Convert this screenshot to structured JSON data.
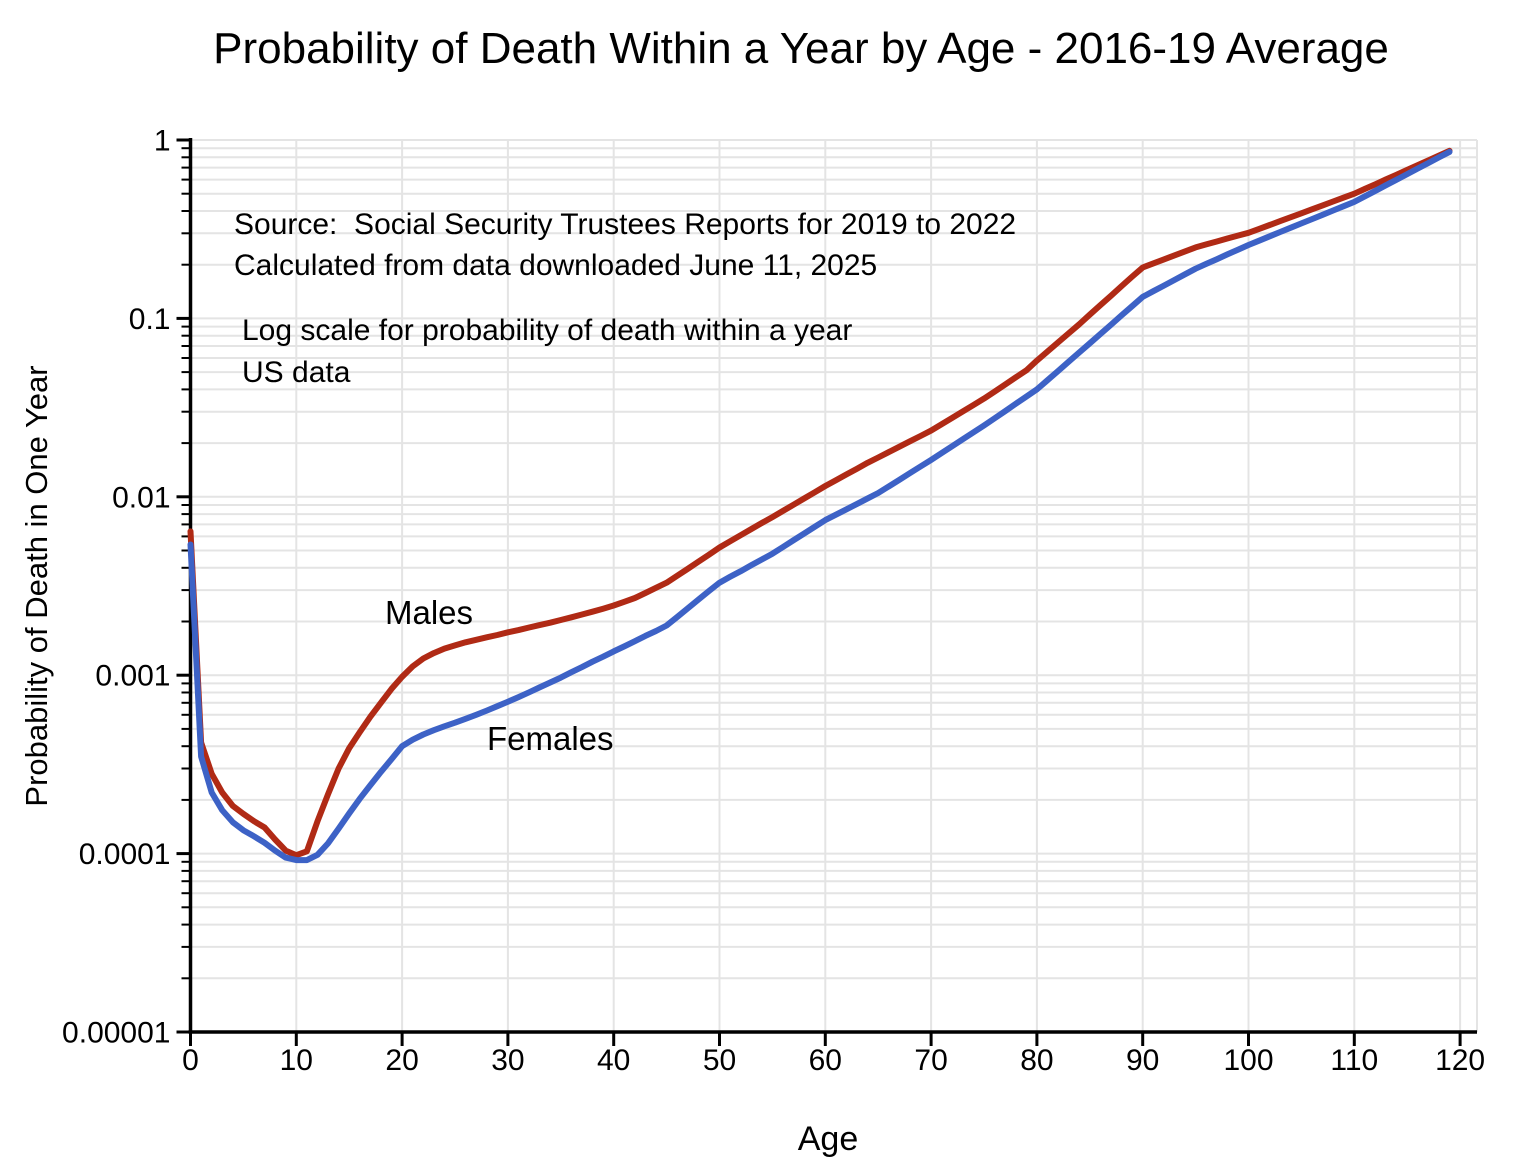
{
  "title": "Probability of Death Within a Year by Age - 2016-19 Average",
  "annotations": {
    "source_line1": "Source:  Social Security Trustees Reports for 2019 to 2022",
    "source_line2": "Calculated from data downloaded June 11, 2025",
    "note_line1": "Log scale for probability of death within a year",
    "note_line2": "US data"
  },
  "series_labels": {
    "males": "Males",
    "females": "Females"
  },
  "axes": {
    "x_label": "Age",
    "y_label": "Probability of Death in One Year",
    "x_ticks": [
      0,
      10,
      20,
      30,
      40,
      50,
      60,
      70,
      80,
      90,
      100,
      110,
      120
    ],
    "y_ticks": [
      {
        "value": 1,
        "label": "1"
      },
      {
        "value": 0.1,
        "label": "0.1"
      },
      {
        "value": 0.01,
        "label": "0.01"
      },
      {
        "value": 0.001,
        "label": "0.001"
      },
      {
        "value": 0.0001,
        "label": "0.0001"
      },
      {
        "value": 1e-05,
        "label": "0.00001"
      }
    ]
  },
  "colors": {
    "males_line": "#b02a15",
    "females_line": "#3d62c6",
    "gridline": "#e4e4e4",
    "axis": "#000000",
    "text": "#000000",
    "background": "#ffffff"
  },
  "chart_data": {
    "type": "line",
    "title": "Probability of Death Within a Year by Age - 2016-19 Average",
    "xlabel": "Age",
    "ylabel": "Probability of Death in One Year",
    "x_range": [
      0,
      120
    ],
    "y_scale": "log",
    "y_range": [
      1e-05,
      1
    ],
    "grid": true,
    "legend": "inline-labels",
    "x_start": 0,
    "x_step": 1,
    "series": [
      {
        "name": "Males",
        "values": [
          0.0064,
          0.00042,
          0.00028,
          0.00022,
          0.000185,
          0.000167,
          0.000152,
          0.00014,
          0.00012,
          0.000104,
          9.8e-05,
          0.000103,
          0.000152,
          0.000215,
          0.0003,
          0.00039,
          0.00048,
          0.000585,
          0.0007,
          0.000838,
          0.00098,
          0.00112,
          0.00124,
          0.00133,
          0.00141,
          0.00147,
          0.00153,
          0.00158,
          0.00163,
          0.00168,
          0.00174,
          0.00179,
          0.00185,
          0.00191,
          0.00197,
          0.00204,
          0.00211,
          0.00219,
          0.00227,
          0.00236,
          0.00246,
          0.00258,
          0.00271,
          0.00289,
          0.00309,
          0.0033,
          0.00361,
          0.00395,
          0.00432,
          0.00473,
          0.0052,
          0.00563,
          0.00609,
          0.00659,
          0.00713,
          0.0077,
          0.00834,
          0.00903,
          0.00978,
          0.0106,
          0.0115,
          0.01239,
          0.01335,
          0.01438,
          0.0155,
          0.0166,
          0.0178,
          0.01908,
          0.02046,
          0.02193,
          0.0235,
          0.02552,
          0.02771,
          0.03009,
          0.03268,
          0.0355,
          0.03889,
          0.0426,
          0.04667,
          0.05113,
          0.058,
          0.06521,
          0.07332,
          0.08243,
          0.09268,
          0.105,
          0.11866,
          0.1341,
          0.15155,
          0.17127,
          0.193,
          0.20325,
          0.21404,
          0.2254,
          0.23737,
          0.25,
          0.25975,
          0.26988,
          0.2804,
          0.29134,
          0.302,
          0.3176,
          0.334,
          0.3513,
          0.3694,
          0.3885,
          0.4086,
          0.4297,
          0.4519,
          0.4752,
          0.5,
          0.5317,
          0.5654,
          0.6013,
          0.6394,
          0.68,
          0.7231,
          0.769,
          0.8178,
          0.87
        ]
      },
      {
        "name": "Females",
        "values": [
          0.0054,
          0.00035,
          0.00022,
          0.000175,
          0.00015,
          0.000135,
          0.000125,
          0.000115,
          0.000104,
          9.5e-05,
          9.2e-05,
          9.2e-05,
          9.85e-05,
          0.000114,
          0.000138,
          0.000168,
          0.000203,
          0.000242,
          0.000287,
          0.000338,
          0.0004,
          0.000435,
          0.000465,
          0.000492,
          0.000517,
          0.000542,
          0.00057,
          0.0006,
          0.000633,
          0.00067,
          0.00071,
          0.000754,
          0.000802,
          0.000854,
          0.00091,
          0.00097,
          0.00104,
          0.00111,
          0.00119,
          0.00127,
          0.00136,
          0.00145,
          0.00155,
          0.00166,
          0.00177,
          0.0019,
          0.00212,
          0.00237,
          0.00265,
          0.00296,
          0.0033,
          0.00356,
          0.00383,
          0.00413,
          0.00445,
          0.0048,
          0.00523,
          0.00571,
          0.00622,
          0.00679,
          0.0074,
          0.00794,
          0.00851,
          0.00913,
          0.00979,
          0.0105,
          0.01144,
          0.01246,
          0.01357,
          0.01478,
          0.0161,
          0.0176,
          0.01923,
          0.02102,
          0.02297,
          0.0251,
          0.02755,
          0.03024,
          0.0332,
          0.03644,
          0.04,
          0.04506,
          0.05075,
          0.05717,
          0.06439,
          0.0725,
          0.08174,
          0.09215,
          0.10389,
          0.11712,
          0.132,
          0.14197,
          0.15269,
          0.16422,
          0.17662,
          0.19,
          0.20199,
          0.21473,
          0.22828,
          0.24268,
          0.258,
          0.27276,
          0.28836,
          0.30486,
          0.3223,
          0.34073,
          0.36022,
          0.38083,
          0.40261,
          0.42564,
          0.45,
          0.48344,
          0.51936,
          0.55795,
          0.59941,
          0.64395,
          0.6918,
          0.74321,
          0.79844,
          0.858
        ]
      }
    ]
  }
}
